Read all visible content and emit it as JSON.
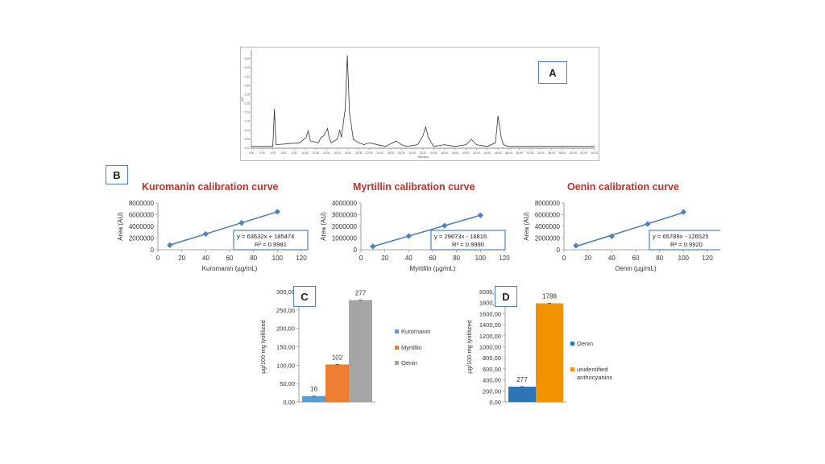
{
  "panels": {
    "A": "A",
    "B": "B",
    "C": "C",
    "D": "D"
  },
  "colors": {
    "line": "#4f81bd",
    "title": "#c0312a",
    "kuromanin": "#5b9bd5",
    "myrtillin": "#ed7d31",
    "oenin_gray": "#a5a5a5",
    "oenin_blue": "#2e75b6",
    "unidentified": "#f39200"
  },
  "chart_data": [
    {
      "type": "line",
      "id": "chromatogram",
      "title": "",
      "xlabel": "Minutes",
      "ylabel": "AU",
      "xlim": [
        0,
        64
      ],
      "ylim": [
        0,
        0.55
      ],
      "x": [
        0,
        4,
        4.3,
        4.6,
        9,
        10.2,
        10.6,
        11,
        12.5,
        13,
        13.5,
        14.2,
        14.5,
        14.9,
        16,
        16.5,
        16.8,
        17.5,
        17.9,
        18.3,
        19,
        20,
        21,
        22,
        25,
        27,
        28,
        29,
        31,
        32,
        32.5,
        33,
        34,
        36,
        38,
        40,
        41,
        42,
        44,
        45.5,
        46,
        46.6,
        47,
        48,
        64
      ],
      "y": [
        0.01,
        0.01,
        0.22,
        0.02,
        0.03,
        0.06,
        0.1,
        0.04,
        0.03,
        0.06,
        0.07,
        0.11,
        0.06,
        0.03,
        0.05,
        0.1,
        0.06,
        0.22,
        0.52,
        0.2,
        0.05,
        0.03,
        0.02,
        0.03,
        0.01,
        0.04,
        0.02,
        0.01,
        0.02,
        0.07,
        0.12,
        0.06,
        0.01,
        0.02,
        0.01,
        0.02,
        0.05,
        0.02,
        0.01,
        0.03,
        0.18,
        0.06,
        0.02,
        0.01,
        0.01
      ]
    },
    {
      "type": "scatter",
      "id": "kuromanin",
      "title": "Kuromanin  calibration  curve",
      "xlabel": "Kuromanin  (µg/mL)",
      "ylabel": "Area (AU)",
      "xlim": [
        0,
        120
      ],
      "ylim": [
        0,
        8000000
      ],
      "xticks": [
        0,
        20,
        40,
        60,
        80,
        100,
        120
      ],
      "yticks": [
        0,
        2000000,
        4000000,
        6000000,
        8000000
      ],
      "ytick_labels": [
        "0",
        "2000000",
        "4000000",
        "6000000",
        "8000000"
      ],
      "x": [
        10,
        40,
        70,
        100
      ],
      "y": [
        800000,
        2700000,
        4600000,
        6500000
      ],
      "equation": "y = 63632x + 185474",
      "r2": "R² = 0.9981"
    },
    {
      "type": "scatter",
      "id": "myrtillin",
      "title": "Myrtillin  calibration  curve",
      "xlabel": "Myrtillin  (µg/mL)",
      "ylabel": "Area (AU)",
      "xlim": [
        0,
        120
      ],
      "ylim": [
        0,
        4000000
      ],
      "xticks": [
        0,
        20,
        40,
        60,
        80,
        100,
        120
      ],
      "yticks": [
        0,
        1000000,
        2000000,
        3000000,
        4000000
      ],
      "ytick_labels": [
        "0",
        "1000000",
        "2000000",
        "3000000",
        "4000000"
      ],
      "x": [
        10,
        40,
        70,
        100
      ],
      "y": [
        280000,
        1170000,
        2060000,
        2950000
      ],
      "equation": "y = 29673x - 16816",
      "r2": "R² = 0.9990"
    },
    {
      "type": "scatter",
      "id": "oenin",
      "title": "Oenin  calibration  curve",
      "xlabel": "Oenin  (µg/mL)",
      "ylabel": "Area (AU)",
      "xlim": [
        0,
        120
      ],
      "ylim": [
        0,
        8000000
      ],
      "xticks": [
        0,
        20,
        40,
        60,
        80,
        100,
        120
      ],
      "yticks": [
        0,
        2000000,
        4000000,
        6000000,
        8000000
      ],
      "ytick_labels": [
        "0",
        "2000000",
        "4000000",
        "6000000",
        "8000000"
      ],
      "x": [
        10,
        40,
        70,
        100
      ],
      "y": [
        700000,
        2300000,
        4400000,
        6450000
      ],
      "equation": "y = 65789x - 126525",
      "r2": "R² = 0.9920"
    },
    {
      "type": "bar",
      "id": "panel_c",
      "ylabel": "µg/100 mg  lyofilized",
      "ylim": [
        0,
        300
      ],
      "yticks": [
        0,
        50,
        100,
        150,
        200,
        250,
        300
      ],
      "ytick_labels": [
        "0,00",
        "50,00",
        "100,00",
        "150,00",
        "200,00",
        "250,00",
        "300,00"
      ],
      "series": [
        {
          "name": "Kuromanin",
          "value": 16,
          "label": "16"
        },
        {
          "name": "Myrtillin",
          "value": 102,
          "label": "102"
        },
        {
          "name": "Oenin",
          "value": 277,
          "label": "277"
        }
      ]
    },
    {
      "type": "bar",
      "id": "panel_d",
      "ylabel": "µg/100 mg  lyofilized",
      "ylim": [
        0,
        2000
      ],
      "yticks": [
        0,
        200,
        400,
        600,
        800,
        1000,
        1200,
        1400,
        1600,
        1800,
        2000
      ],
      "ytick_labels": [
        "0,00",
        "200,00",
        "400,00",
        "600,00",
        "800,00",
        "1000,00",
        "1200,00",
        "1400,00",
        "1600,00",
        "1800,00",
        "2000,00"
      ],
      "series": [
        {
          "name": "Oenin",
          "value": 277,
          "label": "277"
        },
        {
          "name": "unidentified anthocyanins",
          "value": 1788,
          "label": "1788"
        }
      ]
    }
  ]
}
